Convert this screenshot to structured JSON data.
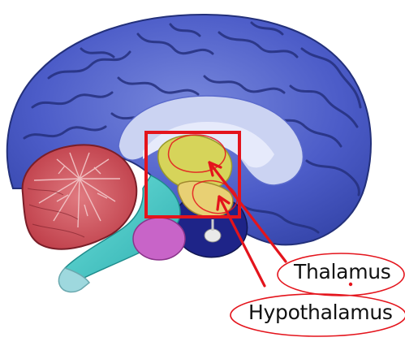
{
  "labels": {
    "thalamus": "Thalamus",
    "hypothalamus": "Hypothalamus"
  },
  "colors": {
    "cortex": "#4c5cc8",
    "cortex_dark": "#2c379a",
    "cortex_light": "#7c8be0",
    "white_matter": "#c8d2f2",
    "cerebellum": "#c4424e",
    "brainstem": "#48c8c4",
    "pons": "#c864c8",
    "thalamus": "#d6d45a",
    "hypothalamus": "#e6d070",
    "midbrain": "#1e2488",
    "annotation_red": "#e4141c"
  },
  "icons": [
    "anatomical-brain-sagittal-illustration"
  ]
}
